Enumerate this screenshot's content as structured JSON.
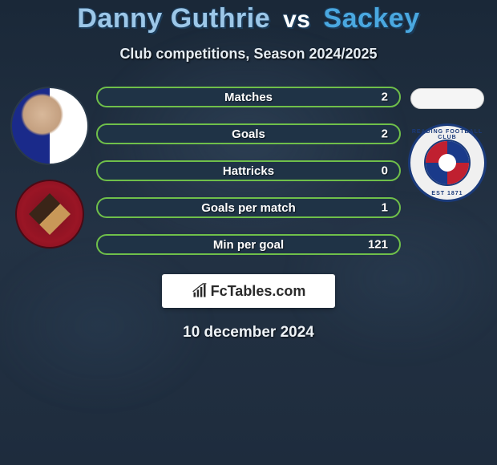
{
  "title": {
    "player1": "Danny Guthrie",
    "vs": "vs",
    "player2": "Sackey"
  },
  "subtitle": "Club competitions, Season 2024/2025",
  "stats": [
    {
      "label": "Matches",
      "value": "2"
    },
    {
      "label": "Goals",
      "value": "2"
    },
    {
      "label": "Hattricks",
      "value": "0"
    },
    {
      "label": "Goals per match",
      "value": "1"
    },
    {
      "label": "Min per goal",
      "value": "121"
    }
  ],
  "style": {
    "bar_bg": "#1f3346",
    "bar_border": "#6fbf4a",
    "bar_text": "#ffffff",
    "title_p1_color": "#9cc7e8",
    "title_p2_color": "#4aa8e0",
    "title_vs_color": "#ffffff"
  },
  "brand": {
    "name": "FcTables.com",
    "icon": "chart-icon"
  },
  "date": "10 december 2024",
  "left_club_ring": "",
  "right_club_ring_top": "READING FOOTBALL CLUB",
  "right_club_ring_bot": "EST 1871"
}
